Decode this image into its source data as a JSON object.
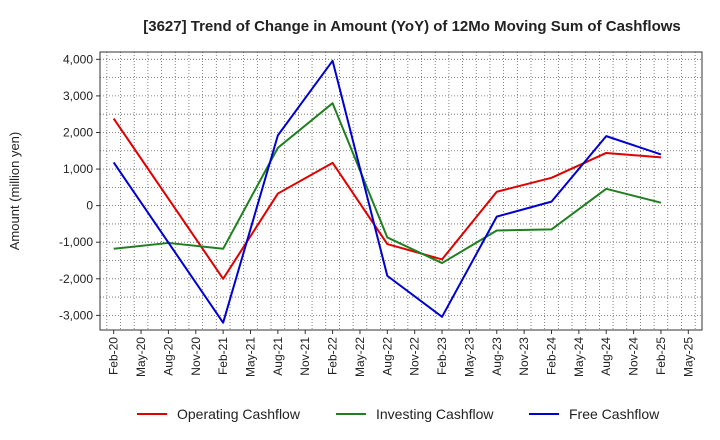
{
  "chart_data": {
    "type": "line",
    "title": "[3627]  Trend of Change in Amount (YoY) of 12Mo Moving Sum of Cashflows",
    "xlabel": "",
    "ylabel": "Amount (million yen)",
    "ylim": [
      -3400,
      4200
    ],
    "yticks": [
      4000,
      3000,
      2000,
      1000,
      0,
      -1000,
      -2000,
      -3000
    ],
    "ytick_labels": [
      "4,000",
      "3,000",
      "2,000",
      "1,000",
      "0",
      "-1,000",
      "-2,000",
      "-3,000"
    ],
    "categories": [
      "Feb-20",
      "May-20",
      "Aug-20",
      "Nov-20",
      "Feb-21",
      "May-21",
      "Aug-21",
      "Nov-21",
      "Feb-22",
      "May-22",
      "Aug-22",
      "Nov-22",
      "Feb-23",
      "May-23",
      "Aug-23",
      "Nov-23",
      "Feb-24",
      "May-24",
      "Aug-24",
      "Nov-24",
      "Feb-25",
      "May-25"
    ],
    "grid": true,
    "legend_position": "bottom",
    "series": [
      {
        "name": "Operating Cashflow",
        "color": "#e00000",
        "points": [
          {
            "x": "Feb-20",
            "y": 2380
          },
          {
            "x": "Feb-21",
            "y": -2000
          },
          {
            "x": "Aug-21",
            "y": 330
          },
          {
            "x": "Feb-22",
            "y": 1170
          },
          {
            "x": "Aug-22",
            "y": -1050
          },
          {
            "x": "Feb-23",
            "y": -1470
          },
          {
            "x": "Aug-23",
            "y": 380
          },
          {
            "x": "Feb-24",
            "y": 760
          },
          {
            "x": "Aug-24",
            "y": 1440
          },
          {
            "x": "Feb-25",
            "y": 1320
          }
        ]
      },
      {
        "name": "Investing Cashflow",
        "color": "#208020",
        "points": [
          {
            "x": "Feb-20",
            "y": -1180
          },
          {
            "x": "Aug-20",
            "y": -1020
          },
          {
            "x": "Feb-21",
            "y": -1180
          },
          {
            "x": "Aug-21",
            "y": 1580
          },
          {
            "x": "Feb-22",
            "y": 2800
          },
          {
            "x": "Aug-22",
            "y": -870
          },
          {
            "x": "Feb-23",
            "y": -1570
          },
          {
            "x": "Aug-23",
            "y": -680
          },
          {
            "x": "Feb-24",
            "y": -650
          },
          {
            "x": "Aug-24",
            "y": 460
          },
          {
            "x": "Feb-25",
            "y": 80
          }
        ]
      },
      {
        "name": "Free Cashflow",
        "color": "#0000d0",
        "points": [
          {
            "x": "Feb-20",
            "y": 1180
          },
          {
            "x": "Feb-21",
            "y": -3200
          },
          {
            "x": "Aug-21",
            "y": 1920
          },
          {
            "x": "Feb-22",
            "y": 3960
          },
          {
            "x": "Aug-22",
            "y": -1920
          },
          {
            "x": "Feb-23",
            "y": -3040
          },
          {
            "x": "Aug-23",
            "y": -300
          },
          {
            "x": "Feb-24",
            "y": 110
          },
          {
            "x": "Aug-24",
            "y": 1900
          },
          {
            "x": "Feb-25",
            "y": 1400
          }
        ]
      }
    ]
  }
}
